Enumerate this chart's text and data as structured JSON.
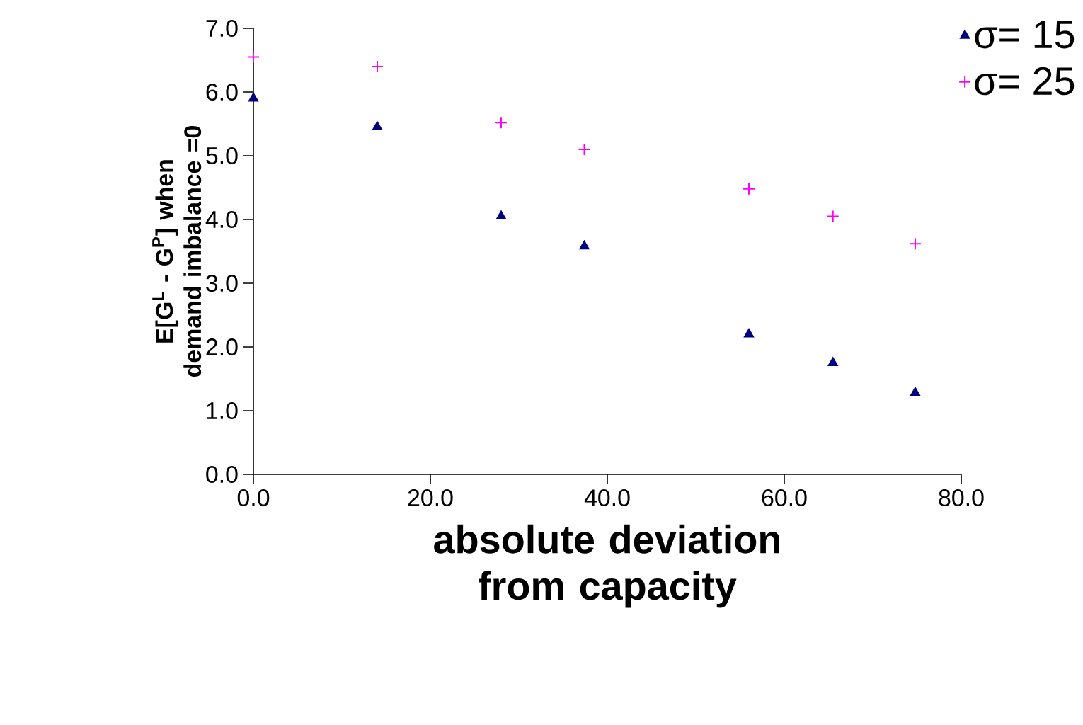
{
  "chart_data": {
    "type": "scatter",
    "xlabel": "absolute deviation from capacity",
    "ylabel": "E[G$^{L}$ - G$^{P}$] when demand imbalance =0",
    "x": [
      0,
      14,
      28,
      37.4,
      56,
      65.5,
      74.8
    ],
    "series": [
      {
        "name": "σ= 15",
        "color": "#000080",
        "marker": "triangle",
        "values": [
          5.9,
          5.45,
          4.05,
          3.58,
          2.2,
          1.75,
          1.28
        ]
      },
      {
        "name": "σ= 25",
        "color": "#ff00ff",
        "marker": "cross",
        "values": [
          6.55,
          6.4,
          5.52,
          5.1,
          4.48,
          4.05,
          3.62
        ]
      }
    ],
    "xlim": [
      0,
      80
    ],
    "ylim": [
      0,
      7
    ],
    "xticks": [
      {
        "value": 0,
        "label": "0.0"
      },
      {
        "value": 20,
        "label": "20.0"
      },
      {
        "value": 40,
        "label": "40.0"
      },
      {
        "value": 60,
        "label": "60.0"
      },
      {
        "value": 80,
        "label": "80.0"
      }
    ],
    "yticks": [
      {
        "value": 0,
        "label": "0.0"
      },
      {
        "value": 1,
        "label": "1.0"
      },
      {
        "value": 2,
        "label": "2.0"
      },
      {
        "value": 3,
        "label": "3.0"
      },
      {
        "value": 4,
        "label": "4.0"
      },
      {
        "value": 5,
        "label": "5.0"
      },
      {
        "value": 6,
        "label": "6.0"
      },
      {
        "value": 7,
        "label": "7.0"
      }
    ],
    "grid": false,
    "legend": "top right"
  }
}
